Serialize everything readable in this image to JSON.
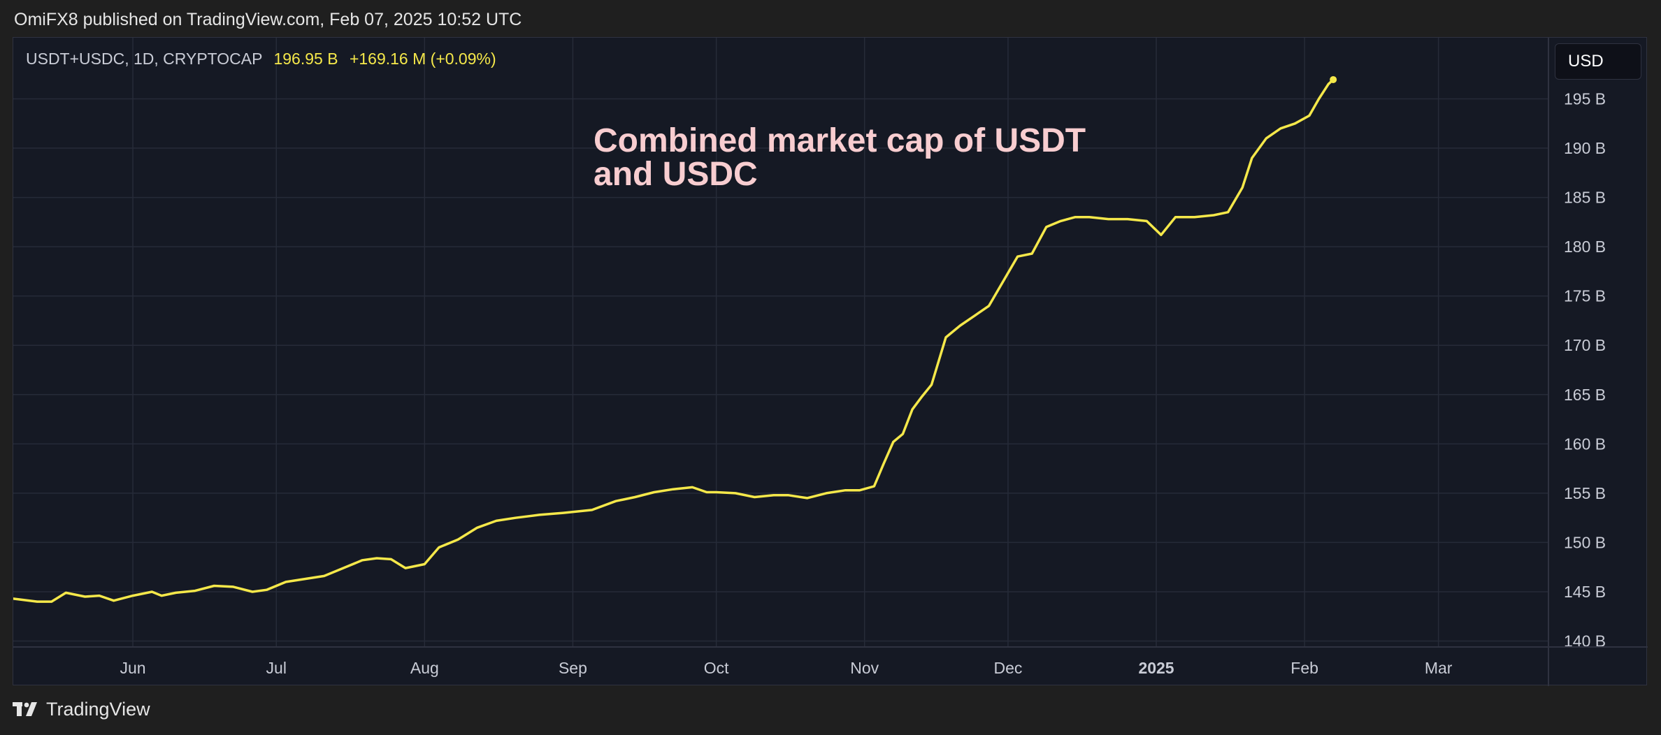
{
  "header": {
    "published_text": "OmiFX8 published on TradingView.com, Feb 07, 2025 10:52 UTC"
  },
  "legend": {
    "symbol": "USDT+USDC, 1D, CRYPTOCAP",
    "last_value": "196.95 B",
    "change": "+169.16 M (+0.09%)"
  },
  "currency_button": "USD",
  "annotation": "Combined market cap of USDT and USDC",
  "footer": {
    "brand": "TradingView"
  },
  "colors": {
    "line": "#f5e84a",
    "background": "#151924",
    "grid": "#262b38",
    "annotation": "#f8cdd0"
  },
  "chart_data": {
    "type": "line",
    "title": "Combined market cap of USDT and USDC",
    "series_name": "USDT+USDC",
    "unit": "B",
    "x_axis_labels": [
      "Jun",
      "Jul",
      "Aug",
      "Sep",
      "Oct",
      "Nov",
      "Dec",
      "2025",
      "Feb",
      "Mar"
    ],
    "x_label_dates": [
      "2024-06-01",
      "2024-07-01",
      "2024-08-01",
      "2024-09-01",
      "2024-10-01",
      "2024-11-01",
      "2024-12-01",
      "2025-01-01",
      "2025-02-01",
      "2025-03-01"
    ],
    "x_range": [
      "2024-05-07",
      "2025-03-24"
    ],
    "y_ticks": [
      140,
      145,
      150,
      155,
      160,
      165,
      170,
      175,
      180,
      185,
      190,
      195
    ],
    "y_tick_labels": [
      "140 B",
      "145 B",
      "150 B",
      "155 B",
      "160 B",
      "165 B",
      "170 B",
      "175 B",
      "180 B",
      "185 B",
      "190 B",
      "195 B"
    ],
    "ylim": [
      139.4,
      201.2
    ],
    "x": [
      "2024-05-07",
      "2024-05-12",
      "2024-05-15",
      "2024-05-18",
      "2024-05-22",
      "2024-05-25",
      "2024-05-28",
      "2024-06-01",
      "2024-06-05",
      "2024-06-07",
      "2024-06-10",
      "2024-06-14",
      "2024-06-18",
      "2024-06-22",
      "2024-06-26",
      "2024-06-29",
      "2024-07-03",
      "2024-07-07",
      "2024-07-11",
      "2024-07-15",
      "2024-07-19",
      "2024-07-22",
      "2024-07-25",
      "2024-07-28",
      "2024-08-01",
      "2024-08-04",
      "2024-08-08",
      "2024-08-12",
      "2024-08-16",
      "2024-08-20",
      "2024-08-25",
      "2024-08-30",
      "2024-09-05",
      "2024-09-10",
      "2024-09-14",
      "2024-09-18",
      "2024-09-22",
      "2024-09-26",
      "2024-09-29",
      "2024-10-01",
      "2024-10-05",
      "2024-10-09",
      "2024-10-13",
      "2024-10-16",
      "2024-10-20",
      "2024-10-24",
      "2024-10-28",
      "2024-10-31",
      "2024-11-03",
      "2024-11-05",
      "2024-11-07",
      "2024-11-09",
      "2024-11-11",
      "2024-11-13",
      "2024-11-15",
      "2024-11-18",
      "2024-11-21",
      "2024-11-24",
      "2024-11-27",
      "2024-11-30",
      "2024-12-03",
      "2024-12-06",
      "2024-12-09",
      "2024-12-12",
      "2024-12-15",
      "2024-12-18",
      "2024-12-22",
      "2024-12-26",
      "2024-12-30",
      "2025-01-02",
      "2025-01-05",
      "2025-01-09",
      "2025-01-13",
      "2025-01-16",
      "2025-01-19",
      "2025-01-21",
      "2025-01-24",
      "2025-01-27",
      "2025-01-30",
      "2025-02-02",
      "2025-02-04",
      "2025-02-06",
      "2025-02-07"
    ],
    "values": [
      144.3,
      144.0,
      144.0,
      144.9,
      144.5,
      144.6,
      144.1,
      144.6,
      145.0,
      144.6,
      144.9,
      145.1,
      145.6,
      145.5,
      145.0,
      145.2,
      146.0,
      146.3,
      146.6,
      147.4,
      148.2,
      148.4,
      148.3,
      147.4,
      147.8,
      149.5,
      150.3,
      151.5,
      152.2,
      152.5,
      152.8,
      153.0,
      153.3,
      154.2,
      154.6,
      155.1,
      155.4,
      155.6,
      155.1,
      155.1,
      155.0,
      154.6,
      154.8,
      154.8,
      154.5,
      155.0,
      155.3,
      155.3,
      155.7,
      158.0,
      160.2,
      161.0,
      163.5,
      164.8,
      166.0,
      170.8,
      172.0,
      173.0,
      174.0,
      176.5,
      179.0,
      179.3,
      182.0,
      182.6,
      183.0,
      183.0,
      182.8,
      182.8,
      182.6,
      181.2,
      183.0,
      183.0,
      183.2,
      183.5,
      186.0,
      189.0,
      191.0,
      192.0,
      192.5,
      193.3,
      195.0,
      196.5,
      196.95
    ]
  }
}
